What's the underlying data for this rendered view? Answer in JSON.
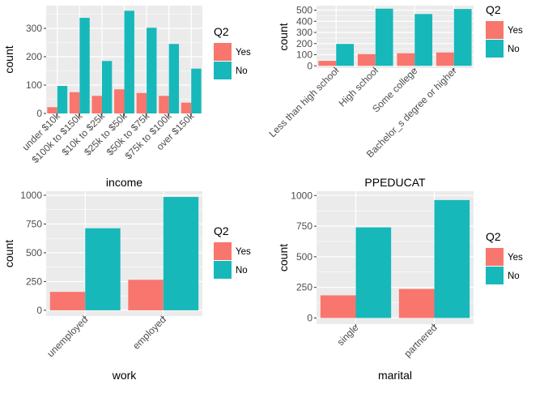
{
  "legend": {
    "title": "Q2",
    "entries": [
      "Yes",
      "No"
    ]
  },
  "colors": {
    "Yes": "#F8766D",
    "No": "#17B8BA",
    "panel": "#EBEBEB",
    "grid": "#FFFFFF",
    "axis_text": "#4D4D4D"
  },
  "chart_data": [
    {
      "type": "bar",
      "xlabel": "income",
      "ylabel": "count",
      "categories": [
        "under $10k",
        "$100k to $150k",
        "$10k to $25k",
        "$25k to $50k",
        "$50k to $75k",
        "$75k to $100k",
        "over $150k"
      ],
      "series": [
        {
          "name": "Yes",
          "values": [
            22,
            75,
            62,
            85,
            72,
            62,
            38
          ]
        },
        {
          "name": "No",
          "values": [
            97,
            337,
            185,
            362,
            302,
            245,
            158
          ]
        }
      ],
      "ylim": [
        0,
        380
      ],
      "yticks": [
        0,
        100,
        200,
        300
      ],
      "legend_position": "right",
      "grid": true
    },
    {
      "type": "bar",
      "xlabel": "PPEDUCAT",
      "ylabel": "count",
      "categories": [
        "Less than high school",
        "High school",
        "Some college",
        "Bachelor_s degree or higher"
      ],
      "series": [
        {
          "name": "Yes",
          "values": [
            45,
            105,
            113,
            120
          ]
        },
        {
          "name": "No",
          "values": [
            197,
            513,
            465,
            510
          ]
        }
      ],
      "ylim": [
        -20,
        540
      ],
      "yticks": [
        0,
        100,
        200,
        300,
        400,
        500
      ],
      "ytick_labels": [
        "0",
        "100",
        "200",
        "300",
        "400",
        "500"
      ],
      "legend_position": "right",
      "grid": true
    },
    {
      "type": "bar",
      "xlabel": "work",
      "ylabel": "count",
      "categories": [
        "unemployed",
        "employed"
      ],
      "series": [
        {
          "name": "Yes",
          "values": [
            160,
            265
          ]
        },
        {
          "name": "No",
          "values": [
            713,
            985
          ]
        }
      ],
      "ylim": [
        -50,
        1035
      ],
      "yticks": [
        0,
        250,
        500,
        750,
        1000
      ],
      "legend_position": "right",
      "grid": true
    },
    {
      "type": "bar",
      "xlabel": "marital",
      "ylabel": "count",
      "categories": [
        "single",
        "partnered"
      ],
      "series": [
        {
          "name": "Yes",
          "values": [
            185,
            237
          ]
        },
        {
          "name": "No",
          "values": [
            740,
            963
          ]
        }
      ],
      "ylim": [
        -50,
        1035
      ],
      "yticks": [
        0,
        250,
        500,
        750,
        1000
      ],
      "legend_position": "right",
      "grid": true
    }
  ]
}
